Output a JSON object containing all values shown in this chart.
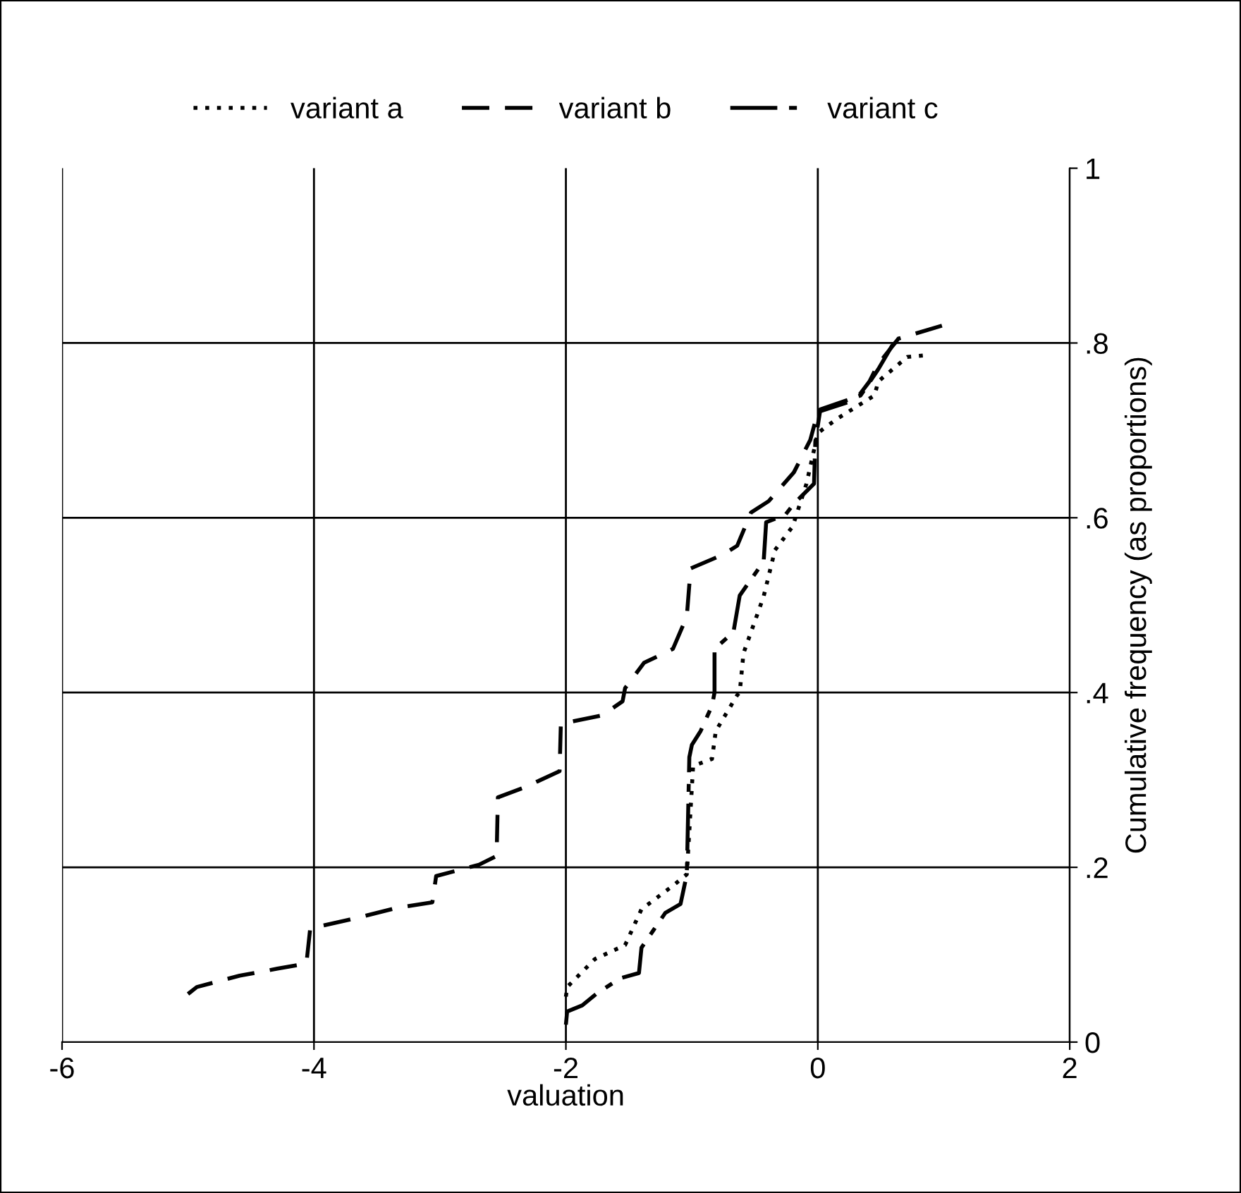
{
  "chart_data": {
    "type": "line",
    "xlabel": "valuation",
    "ylabel": "Cumulative frequency (as proportions)",
    "xlim": [
      -6,
      2
    ],
    "xticks": [
      -6,
      -4,
      -2,
      0,
      2
    ],
    "ylim": [
      0,
      1
    ],
    "yticks": [
      0,
      {
        "value": 0.2,
        "label": ".2"
      },
      {
        "value": 0.4,
        "label": ".4"
      },
      {
        "value": 0.6,
        "label": ".6"
      },
      {
        "value": 0.8,
        "label": ".8"
      },
      1
    ],
    "grid": true,
    "legend": "top",
    "marker": "none",
    "series": [
      {
        "name": "variant a",
        "color": "#000000",
        "line_style": "dotted",
        "x": [
          -2.0,
          -1.99,
          -1.77,
          -1.53,
          -1.4,
          -1.15,
          -1.04,
          -0.99,
          -0.84,
          -0.81,
          -0.64,
          -0.62,
          -0.59,
          -0.43,
          -0.34,
          -0.2,
          -0.09,
          0.0,
          0.15,
          0.45,
          0.48,
          0.71,
          0.86
        ],
        "values": [
          0.052,
          0.063,
          0.095,
          0.111,
          0.152,
          0.179,
          0.192,
          0.316,
          0.324,
          0.356,
          0.397,
          0.4,
          0.445,
          0.51,
          0.563,
          0.59,
          0.639,
          0.697,
          0.713,
          0.74,
          0.756,
          0.784,
          0.786
        ]
      },
      {
        "name": "variant b",
        "color": "#000000",
        "line_style": "dashed",
        "x": [
          -5.0,
          -4.93,
          -4.59,
          -4.29,
          -4.06,
          -4.03,
          -3.66,
          -3.36,
          -3.06,
          -3.03,
          -2.69,
          -2.55,
          -2.54,
          -2.32,
          -2.05,
          -2.04,
          -1.98,
          -1.71,
          -1.55,
          -1.53,
          -1.38,
          -1.15,
          -1.04,
          -1.01,
          -0.75,
          -0.64,
          -0.53,
          -0.39,
          -0.19,
          -0.06,
          0.0,
          0.3,
          0.41,
          0.48,
          0.64,
          0.99
        ],
        "values": [
          0.055,
          0.063,
          0.076,
          0.084,
          0.09,
          0.13,
          0.142,
          0.153,
          0.16,
          0.19,
          0.203,
          0.213,
          0.28,
          0.292,
          0.31,
          0.365,
          0.366,
          0.374,
          0.39,
          0.405,
          0.434,
          0.45,
          0.487,
          0.542,
          0.558,
          0.568,
          0.606,
          0.619,
          0.652,
          0.689,
          0.721,
          0.735,
          0.756,
          0.776,
          0.805,
          0.82
        ]
      },
      {
        "name": "variant c",
        "color": "#000000",
        "line_style": "dashdot",
        "x": [
          -2.0,
          -1.99,
          -1.87,
          -1.76,
          -1.57,
          -1.42,
          -1.4,
          -1.31,
          -1.21,
          -1.09,
          -1.04,
          -1.02,
          -1.0,
          -0.93,
          -0.84,
          -0.82,
          -0.82,
          -0.67,
          -0.62,
          -0.43,
          -0.41,
          -0.26,
          -0.19,
          -0.03,
          -0.02,
          0.02,
          0.34,
          0.48,
          0.59,
          0.65
        ],
        "values": [
          0.02,
          0.035,
          0.042,
          0.055,
          0.073,
          0.079,
          0.108,
          0.127,
          0.148,
          0.158,
          0.192,
          0.326,
          0.34,
          0.356,
          0.385,
          0.4,
          0.45,
          0.469,
          0.511,
          0.55,
          0.595,
          0.603,
          0.616,
          0.639,
          0.687,
          0.724,
          0.74,
          0.77,
          0.797,
          0.805
        ]
      }
    ]
  }
}
